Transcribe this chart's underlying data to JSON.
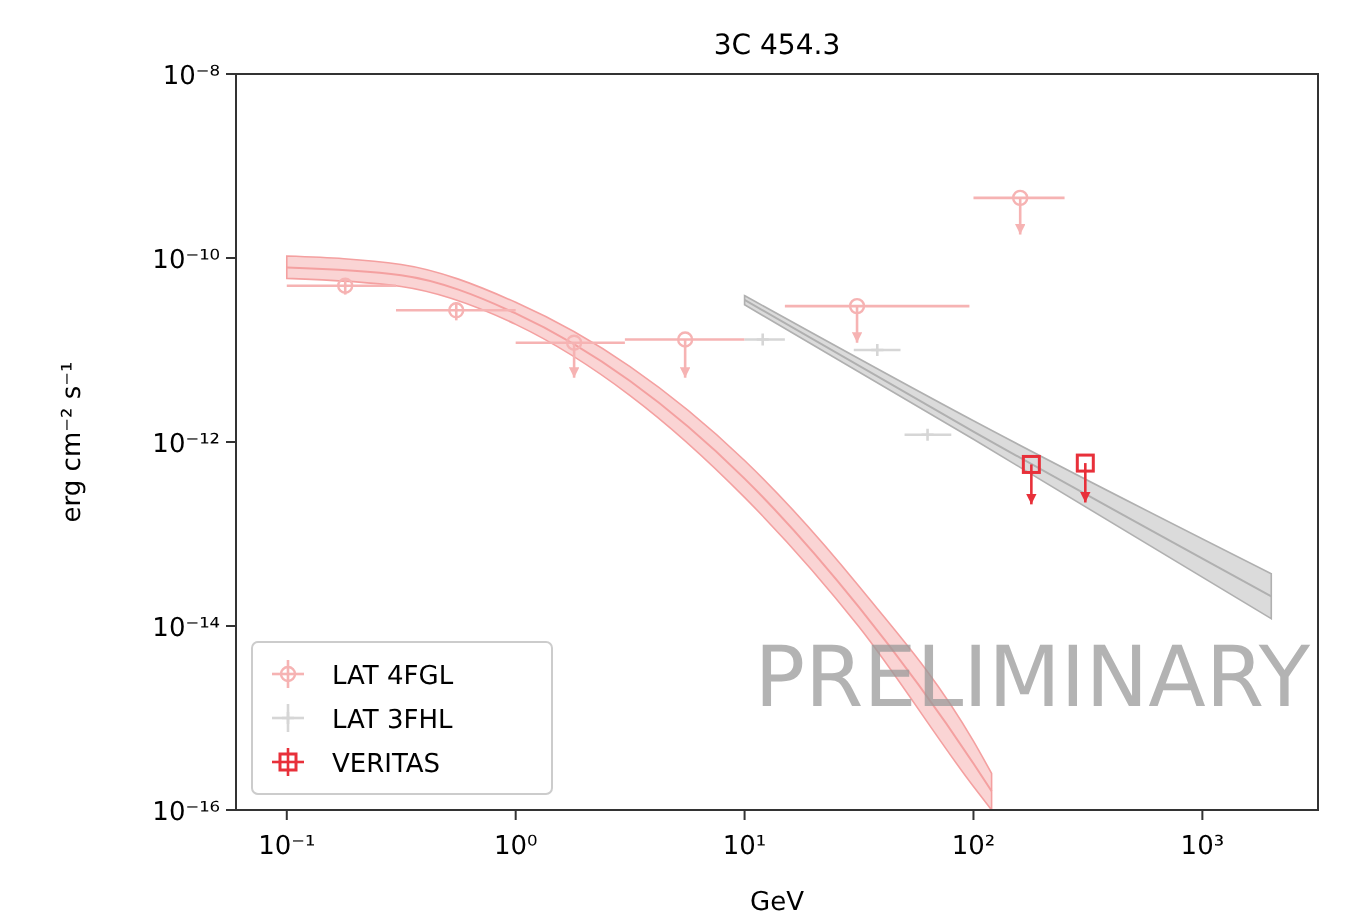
{
  "chart_data": {
    "type": "scatter",
    "title": "3C 454.3",
    "xlabel": "GeV",
    "ylabel": "erg cm⁻² s⁻¹",
    "log": "xy",
    "grid": false,
    "legend": "bottom left",
    "xlim": [
      0.06,
      3200
    ],
    "ylim": [
      1e-16,
      1e-08
    ],
    "xticks": [
      {
        "value": 0.1,
        "label": "10⁻¹"
      },
      {
        "value": 1,
        "label": "10⁰"
      },
      {
        "value": 10,
        "label": "10¹"
      },
      {
        "value": 100,
        "label": "10²"
      },
      {
        "value": 1000,
        "label": "10³"
      }
    ],
    "yticks": [
      {
        "value": 1e-16,
        "label": "10⁻¹⁶"
      },
      {
        "value": 1e-14,
        "label": "10⁻¹⁴"
      },
      {
        "value": 1e-12,
        "label": "10⁻¹²"
      },
      {
        "value": 1e-10,
        "label": "10⁻¹⁰"
      },
      {
        "value": 1e-08,
        "label": "10⁻⁸"
      }
    ],
    "annotations": [
      "PRELIMINARY"
    ],
    "series": [
      {
        "type": "line",
        "color": "#f4a0a0",
        "x": [
          0.1,
          0.316,
          1,
          3.16,
          10,
          31.6,
          100,
          120
        ],
        "values": [
          7.9e-11,
          6.5e-11,
          2.5e-11,
          4.6e-12,
          4e-13,
          1.6e-14,
          3.2e-16,
          1.6e-16
        ],
        "lower": [
          6e-11,
          4.9e-11,
          1.9e-11,
          3.2e-12,
          2.5e-13,
          9.8e-15,
          1.8e-16,
          1e-16
        ],
        "upper": [
          1.05e-10,
          8.5e-11,
          3.3e-11,
          6.6e-12,
          6.3e-13,
          2.7e-14,
          5.6e-16,
          2.5e-16
        ]
      },
      {
        "type": "line",
        "color": "#b0b0b0",
        "x": [
          10,
          100,
          2000
        ],
        "values": [
          3.5e-11,
          1.3e-12,
          2.1e-14
        ],
        "lower": [
          3.1e-11,
          1.07e-12,
          1.2e-14
        ],
        "upper": [
          3.9e-11,
          1.7e-12,
          3.7e-14
        ]
      },
      {
        "name": "LAT 4FGL",
        "color": "#f6b3b3",
        "marker": "circle",
        "x": [
          0.18,
          0.55,
          1.8,
          5.5,
          31,
          160
        ],
        "values": [
          5e-11,
          2.7e-11,
          1.2e-11,
          1.3e-11,
          3e-11,
          4.5e-10
        ],
        "errors": [
          [
            4e-11,
            6e-11
          ],
          [
            2.1e-11,
            3.3e-11
          ],
          [
            5e-12,
            1.2e-11
          ],
          [
            5e-12,
            1.3e-11
          ],
          [
            1.2e-11,
            3e-11
          ],
          [
            1.8e-10,
            4.5e-10
          ]
        ],
        "xerrors": [
          [
            0.1,
            0.3
          ],
          [
            0.3,
            1
          ],
          [
            1,
            3
          ],
          [
            3,
            10
          ],
          [
            15,
            96
          ],
          [
            100,
            250
          ]
        ]
      },
      {
        "name": "LAT 3FHL",
        "color": "#d6d6d6",
        "marker": "cross",
        "x": [
          12,
          38,
          63
        ],
        "values": [
          1.3e-11,
          1e-11,
          1.2e-12
        ],
        "xerrors": [
          [
            10,
            15
          ],
          [
            30,
            48
          ],
          [
            50,
            80
          ]
        ]
      },
      {
        "name": "VERITAS",
        "color": "#e8303a",
        "marker": "square",
        "x": [
          179,
          308
        ],
        "values": [
          5.7e-13,
          5.9e-13
        ],
        "errors": [
          [
            2.1e-13,
            5.7e-13
          ],
          [
            2.2e-13,
            5.9e-13
          ]
        ]
      }
    ]
  }
}
